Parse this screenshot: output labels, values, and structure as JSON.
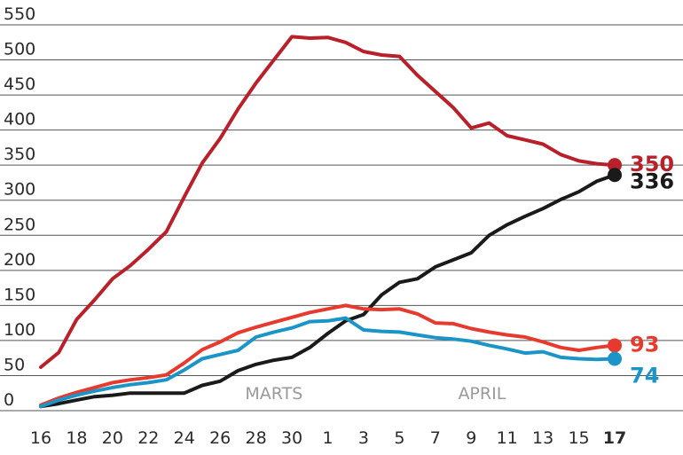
{
  "chart_data": {
    "type": "line",
    "title": "",
    "xlabel": "",
    "ylabel": "",
    "ylim": [
      0,
      550
    ],
    "yticks": [
      0,
      50,
      100,
      150,
      200,
      250,
      300,
      350,
      400,
      450,
      500,
      550
    ],
    "grid": true,
    "x": [
      "16",
      "17",
      "18",
      "19",
      "20",
      "21",
      "22",
      "23",
      "24",
      "25",
      "26",
      "27",
      "28",
      "29",
      "30",
      "31",
      "1",
      "2",
      "3",
      "4",
      "5",
      "6",
      "7",
      "8",
      "9",
      "10",
      "11",
      "12",
      "13",
      "14",
      "15",
      "16",
      "17"
    ],
    "xtick_labels": [
      {
        "i": 0,
        "label": "16"
      },
      {
        "i": 2,
        "label": "18"
      },
      {
        "i": 4,
        "label": "20"
      },
      {
        "i": 6,
        "label": "22"
      },
      {
        "i": 8,
        "label": "24"
      },
      {
        "i": 10,
        "label": "26"
      },
      {
        "i": 12,
        "label": "28"
      },
      {
        "i": 14,
        "label": "30"
      },
      {
        "i": 16,
        "label": "1"
      },
      {
        "i": 18,
        "label": "3"
      },
      {
        "i": 20,
        "label": "5"
      },
      {
        "i": 22,
        "label": "7"
      },
      {
        "i": 24,
        "label": "9"
      },
      {
        "i": 26,
        "label": "11"
      },
      {
        "i": 28,
        "label": "13"
      },
      {
        "i": 30,
        "label": "15"
      },
      {
        "i": 32,
        "label": "17",
        "bold": true
      }
    ],
    "month_labels": [
      {
        "label": "MARTS",
        "i": 13
      },
      {
        "label": "APRIL",
        "i": 24.6
      }
    ],
    "series": [
      {
        "color": "#b8202a",
        "end_label": "350",
        "values": [
          62,
          83,
          130,
          158,
          188,
          207,
          230,
          255,
          305,
          353,
          388,
          430,
          467,
          500,
          533,
          531,
          532,
          525,
          512,
          507,
          505,
          478,
          455,
          432,
          403,
          410,
          392,
          386,
          380,
          365,
          356,
          352,
          350
        ]
      },
      {
        "color": "#1a1a1a",
        "end_label": "336",
        "values": [
          6,
          10,
          15,
          20,
          22,
          25,
          25,
          25,
          25,
          36,
          42,
          57,
          66,
          72,
          76,
          90,
          110,
          128,
          137,
          165,
          183,
          188,
          205,
          215,
          225,
          250,
          265,
          277,
          288,
          301,
          312,
          327,
          336
        ]
      },
      {
        "color": "#e63a2e",
        "end_label": "93",
        "values": [
          8,
          18,
          26,
          33,
          40,
          44,
          47,
          51,
          68,
          87,
          98,
          111,
          119,
          126,
          133,
          140,
          145,
          150,
          145,
          144,
          145,
          138,
          125,
          124,
          117,
          112,
          108,
          105,
          98,
          90,
          86,
          90,
          93
        ]
      },
      {
        "color": "#1b95c7",
        "end_label": "74",
        "values": [
          6,
          15,
          22,
          28,
          33,
          37,
          40,
          44,
          58,
          74,
          80,
          86,
          105,
          112,
          118,
          127,
          128,
          132,
          115,
          113,
          112,
          108,
          104,
          102,
          99,
          93,
          88,
          82,
          84,
          76,
          74,
          73,
          74
        ]
      }
    ]
  }
}
